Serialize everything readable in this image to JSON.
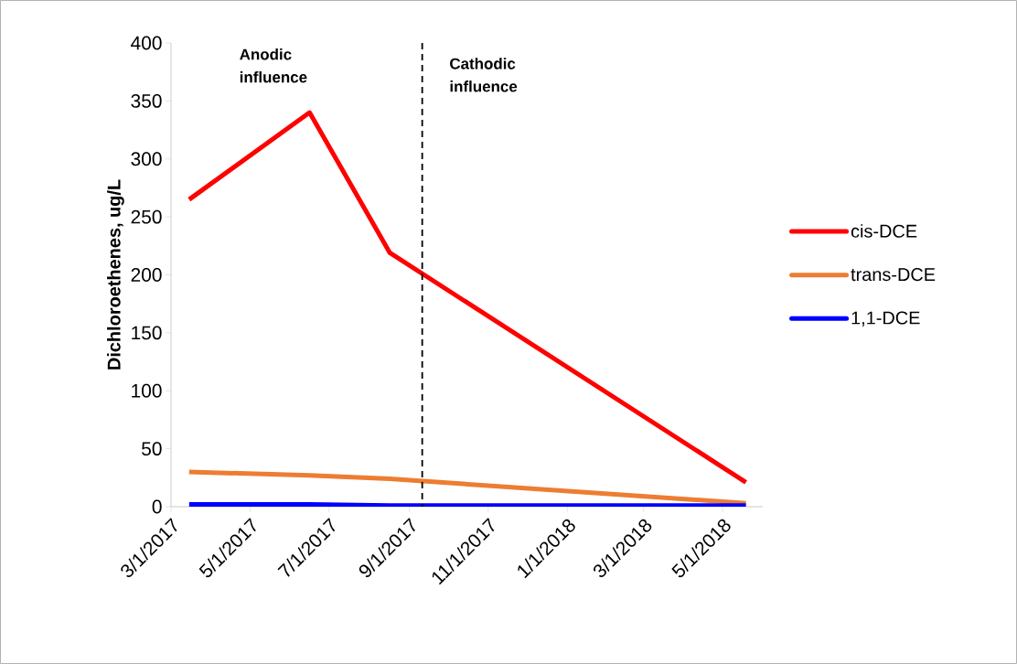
{
  "chart_data": {
    "type": "line",
    "ylabel": "Dichloroethenes, ug/L",
    "x": [
      "2017-03-15",
      "2017-06-16",
      "2017-08-17",
      "2018-05-19"
    ],
    "series": [
      {
        "name": "cis-DCE",
        "color": "#ff0000",
        "values": [
          265,
          340,
          219,
          21
        ]
      },
      {
        "name": "trans-DCE",
        "color": "#ed7d31",
        "values": [
          30,
          27,
          24,
          3
        ]
      },
      {
        "name": "1,1-DCE",
        "color": "#0000ff",
        "values": [
          2,
          2,
          1,
          1
        ]
      }
    ],
    "xlim": [
      "2017-03-01",
      "2018-06-01"
    ],
    "xticks": [
      {
        "value": "2017-03-01",
        "label": "3/1/2017"
      },
      {
        "value": "2017-05-01",
        "label": "5/1/2017"
      },
      {
        "value": "2017-07-01",
        "label": "7/1/2017"
      },
      {
        "value": "2017-09-01",
        "label": "9/1/2017"
      },
      {
        "value": "2017-11-01",
        "label": "11/1/2017"
      },
      {
        "value": "2018-01-01",
        "label": "1/1/2018"
      },
      {
        "value": "2018-03-01",
        "label": "3/1/2018"
      },
      {
        "value": "2018-05-01",
        "label": "5/1/2018"
      }
    ],
    "ylim": [
      0,
      400
    ],
    "yticks": [
      0,
      50,
      100,
      150,
      200,
      250,
      300,
      350,
      400
    ],
    "ref_lines": [
      {
        "axis": "x",
        "value": "2017-09-11",
        "color": "#000000",
        "line_style": "dashed"
      }
    ],
    "annotations": [
      "Anodic influence",
      "Cathodic influence"
    ],
    "legend": "right",
    "grid": false,
    "marker": "none",
    "line_style": "solid"
  }
}
